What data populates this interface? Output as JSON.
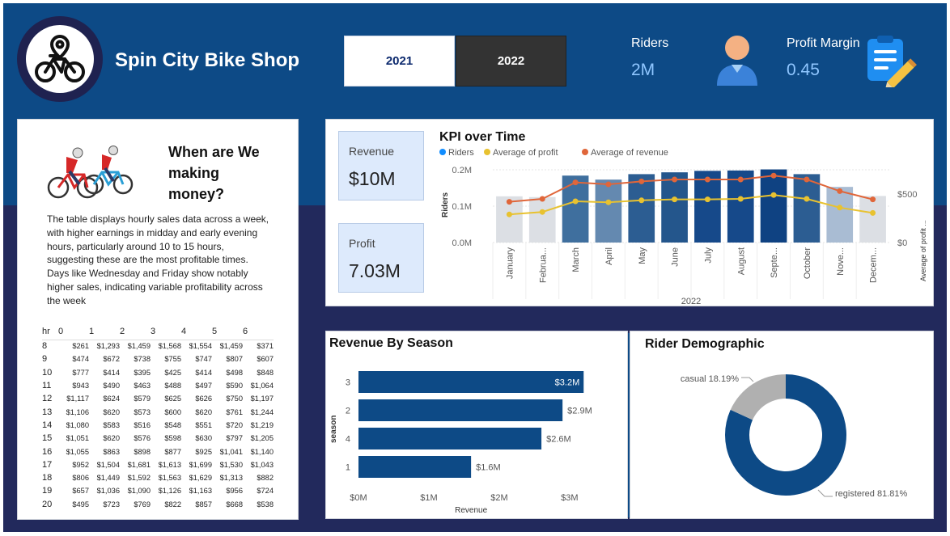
{
  "header": {
    "shop_title": "Spin City Bike Shop",
    "years": [
      "2021",
      "2022"
    ],
    "riders_label": "Riders",
    "riders_value": "2M",
    "profit_margin_label": "Profit Margin",
    "profit_margin_value": "0.45",
    "icons": {
      "logo": "bike-location-icon",
      "riders": "user-icon",
      "profit": "clipboard-pencil-icon"
    }
  },
  "money_panel": {
    "question": "When are We making money?",
    "description": "The table displays hourly sales data across a week, with higher earnings in midday and early evening hours, particularly around 10 to 15 hours, suggesting these are the most profitable times. Days like Wednesday and Friday show notably higher sales, indicating variable profitability across the week",
    "table": {
      "corner_header": "hr",
      "day_headers": [
        "0",
        "1",
        "2",
        "3",
        "4",
        "5",
        "6"
      ],
      "rows": [
        {
          "hr": "8",
          "values": [
            "$261",
            "$1,293",
            "$1,459",
            "$1,568",
            "$1,554",
            "$1,459",
            "$371"
          ]
        },
        {
          "hr": "9",
          "values": [
            "$474",
            "$672",
            "$738",
            "$755",
            "$747",
            "$807",
            "$607"
          ]
        },
        {
          "hr": "10",
          "values": [
            "$777",
            "$414",
            "$395",
            "$425",
            "$414",
            "$498",
            "$848"
          ]
        },
        {
          "hr": "11",
          "values": [
            "$943",
            "$490",
            "$463",
            "$488",
            "$497",
            "$590",
            "$1,064"
          ]
        },
        {
          "hr": "12",
          "values": [
            "$1,117",
            "$624",
            "$579",
            "$625",
            "$626",
            "$750",
            "$1,197"
          ]
        },
        {
          "hr": "13",
          "values": [
            "$1,106",
            "$620",
            "$573",
            "$600",
            "$620",
            "$761",
            "$1,244"
          ]
        },
        {
          "hr": "14",
          "values": [
            "$1,080",
            "$583",
            "$516",
            "$548",
            "$551",
            "$720",
            "$1,219"
          ]
        },
        {
          "hr": "15",
          "values": [
            "$1,051",
            "$620",
            "$576",
            "$598",
            "$630",
            "$797",
            "$1,205"
          ]
        },
        {
          "hr": "16",
          "values": [
            "$1,055",
            "$863",
            "$898",
            "$877",
            "$925",
            "$1,041",
            "$1,140"
          ]
        },
        {
          "hr": "17",
          "values": [
            "$952",
            "$1,504",
            "$1,681",
            "$1,613",
            "$1,699",
            "$1,530",
            "$1,043"
          ]
        },
        {
          "hr": "18",
          "values": [
            "$806",
            "$1,449",
            "$1,592",
            "$1,563",
            "$1,629",
            "$1,313",
            "$882"
          ]
        },
        {
          "hr": "19",
          "values": [
            "$657",
            "$1,036",
            "$1,090",
            "$1,126",
            "$1,163",
            "$956",
            "$724"
          ]
        },
        {
          "hr": "20",
          "values": [
            "$495",
            "$723",
            "$769",
            "$822",
            "$857",
            "$668",
            "$538"
          ]
        }
      ]
    }
  },
  "kpi_cards": [
    {
      "label": "Revenue",
      "value": "$10M"
    },
    {
      "label": "Profit",
      "value": "7.03M"
    }
  ],
  "chart_data": [
    {
      "type": "bar",
      "title": "KPI over Time",
      "legend": [
        "Riders",
        "Average of profit",
        "Average of revenue"
      ],
      "legend_colors": [
        "#118dff",
        "#e8c230",
        "#e0663a"
      ],
      "xlabel": "2022",
      "ylabel": "Riders",
      "y2label": "Average of profit ...",
      "categories": [
        "January",
        "Februa...",
        "March",
        "April",
        "May",
        "June",
        "July",
        "August",
        "Septe...",
        "October",
        "Nove...",
        "Decem..."
      ],
      "y_ticks": [
        "0.0M",
        "0.1M",
        "0.2M"
      ],
      "ylim": [
        0,
        0.2
      ],
      "y2_ticks": [
        "$0",
        "$500"
      ],
      "y2lim": [
        0,
        750
      ],
      "series": [
        {
          "name": "Riders",
          "values": [
            0.127,
            0.125,
            0.184,
            0.173,
            0.188,
            0.193,
            0.197,
            0.198,
            0.201,
            0.188,
            0.153,
            0.128
          ],
          "bar_colors": [
            "#dcdfe4",
            "#dcdfe4",
            "#3f6f9e",
            "#6489b0",
            "#2c5d92",
            "#24568c",
            "#16498a",
            "#16498a",
            "#0f4282",
            "#2c5d92",
            "#a9bcd3",
            "#dcdfe4"
          ]
        },
        {
          "name": "Average of profit",
          "values": [
            290,
            315,
            425,
            415,
            435,
            445,
            445,
            450,
            490,
            450,
            360,
            305
          ]
        },
        {
          "name": "Average of revenue",
          "values": [
            420,
            450,
            620,
            600,
            630,
            650,
            650,
            650,
            690,
            650,
            530,
            445
          ]
        }
      ]
    },
    {
      "type": "bar",
      "orientation": "horizontal",
      "title": "Revenue By Season",
      "ylabel": "season",
      "xlabel": "Revenue",
      "categories": [
        "3",
        "2",
        "4",
        "1"
      ],
      "values": [
        3.2,
        2.9,
        2.6,
        1.6
      ],
      "data_labels": [
        "$3.2M",
        "$2.9M",
        "$2.6M",
        "$1.6M"
      ],
      "x_ticks": [
        "$0M",
        "$1M",
        "$2M",
        "$3M"
      ],
      "xlim": [
        0,
        3.45
      ],
      "color": "#0d4a86"
    },
    {
      "type": "pie",
      "style": "donut",
      "title": "Rider Demographic",
      "slices": [
        {
          "name": "registered",
          "label": "registered 81.81%",
          "value": 81.81,
          "color": "#0d4a86"
        },
        {
          "name": "casual",
          "label": "casual 18.19%",
          "value": 18.19,
          "color": "#b0b0b0"
        }
      ]
    }
  ]
}
